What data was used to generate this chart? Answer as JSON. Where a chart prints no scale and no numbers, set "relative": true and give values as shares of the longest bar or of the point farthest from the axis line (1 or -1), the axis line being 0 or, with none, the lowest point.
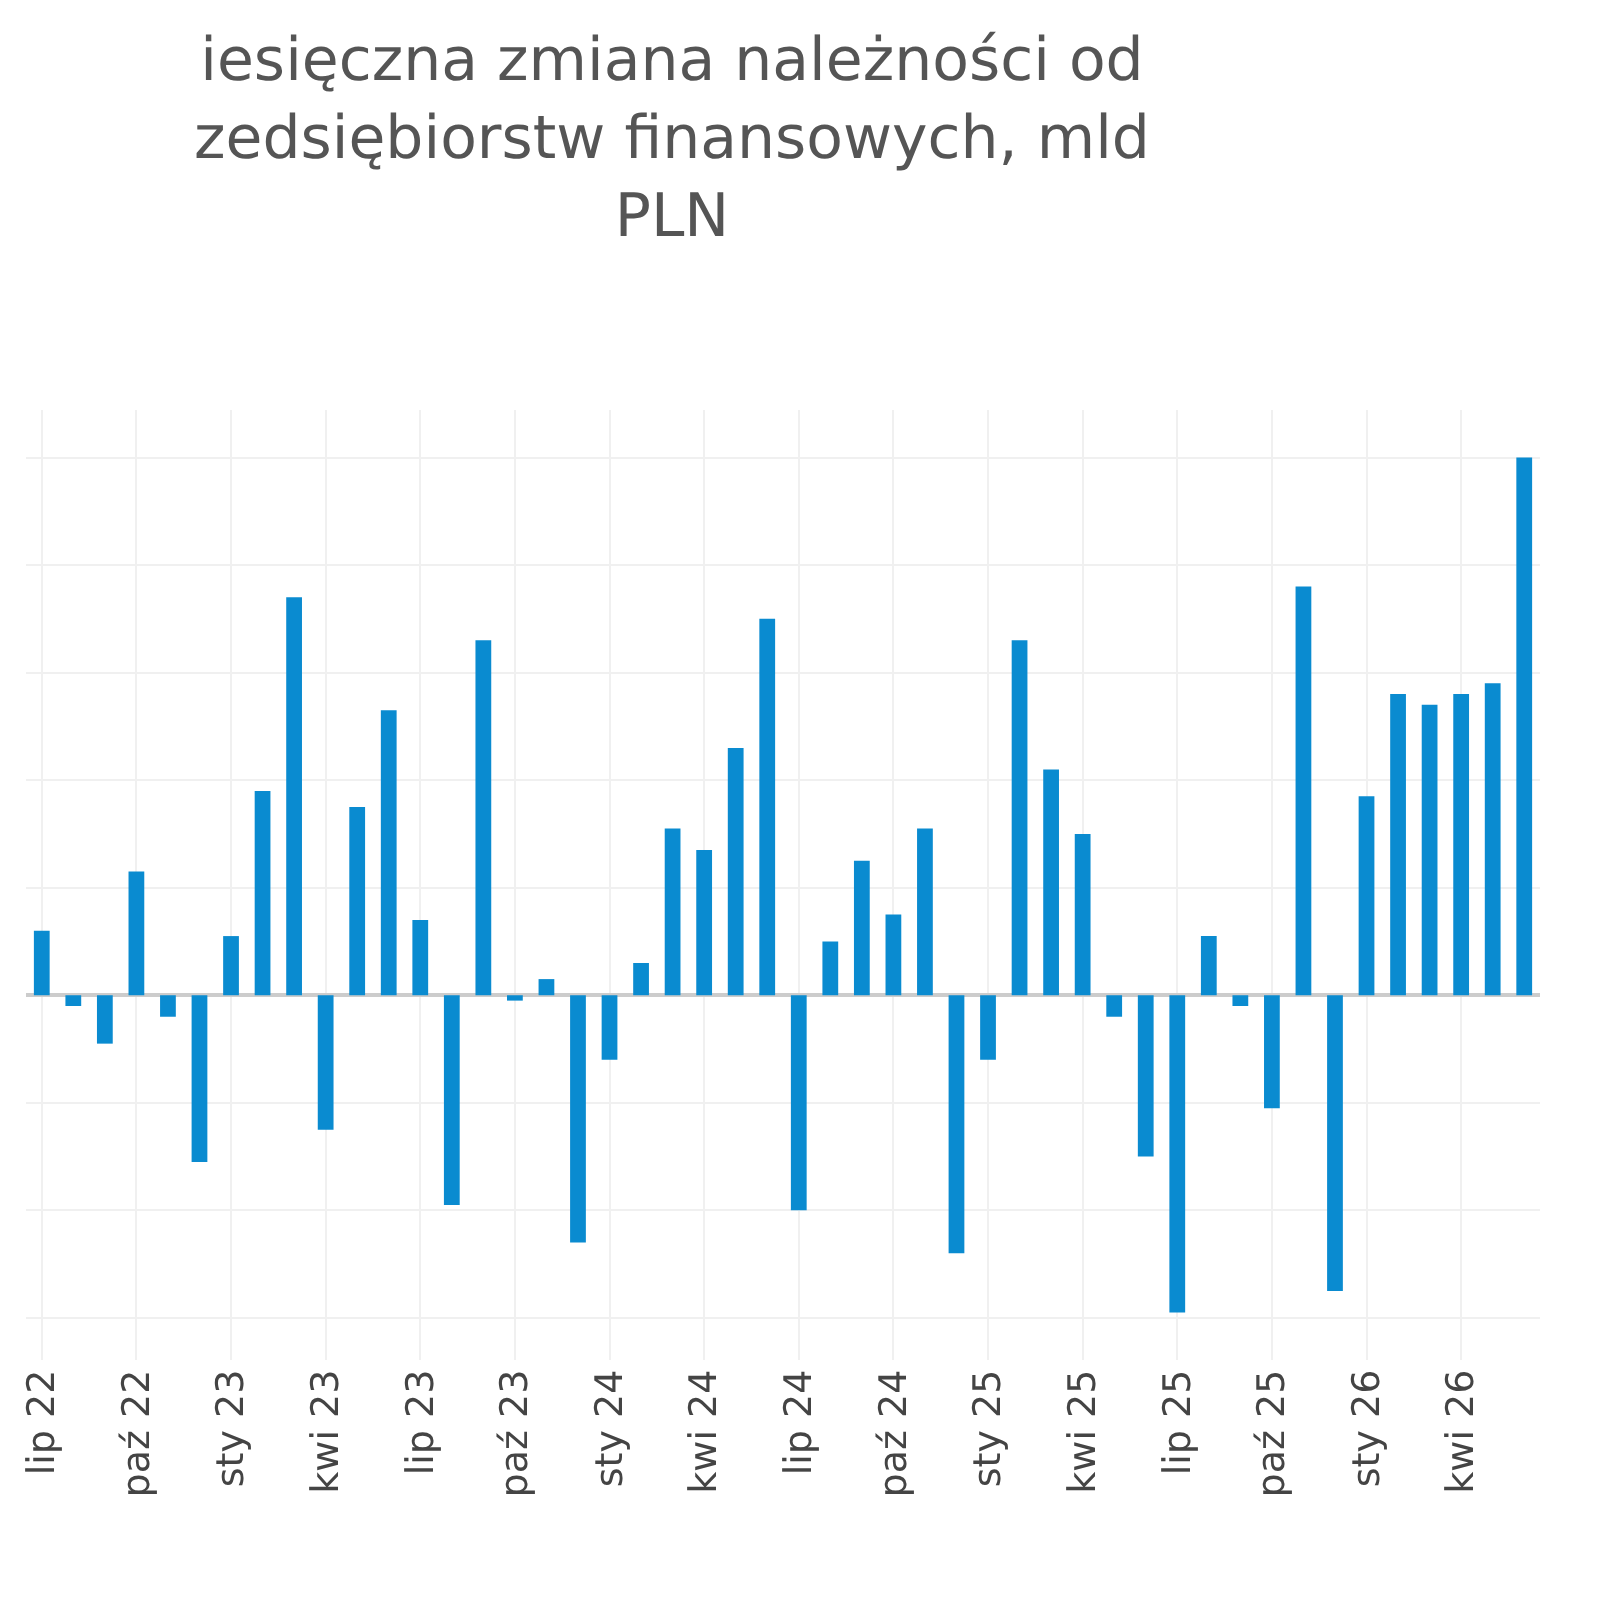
{
  "chart_data": {
    "type": "bar",
    "title": "iesięczna zmiana należności od\nzedsiębiorstw finansowych, mld\nPLN",
    "relative": true,
    "grid": true,
    "color": "#0a8bd0",
    "categories": [
      "lip 22",
      null,
      null,
      "paź 22",
      null,
      null,
      "sty 23",
      null,
      null,
      "kwi 23",
      null,
      null,
      "lip 23",
      null,
      null,
      "paź 23",
      null,
      null,
      "sty 24",
      null,
      null,
      "kwi 24",
      null,
      null,
      "lip 24",
      null,
      null,
      "paź 24",
      null,
      null,
      "sty 25",
      null,
      null,
      "kwi 25",
      null,
      null,
      "lip 25",
      null,
      null,
      "paź 25",
      null,
      null,
      "sty 26",
      null,
      null,
      "kwi 26",
      null,
      null
    ],
    "values": [
      0.12,
      -0.02,
      -0.09,
      0.23,
      -0.04,
      -0.31,
      0.11,
      0.38,
      0.74,
      -0.25,
      0.35,
      0.53,
      0.14,
      -0.39,
      0.66,
      -0.01,
      0.03,
      -0.46,
      -0.12,
      0.06,
      0.31,
      0.27,
      0.46,
      0.7,
      -0.4,
      0.1,
      0.25,
      0.15,
      0.31,
      -0.48,
      -0.12,
      0.66,
      0.42,
      0.3,
      -0.04,
      -0.3,
      -0.59,
      0.11,
      -0.02,
      -0.21,
      0.76,
      -0.55,
      0.37,
      0.56,
      0.54,
      0.56,
      0.58,
      1
    ]
  }
}
